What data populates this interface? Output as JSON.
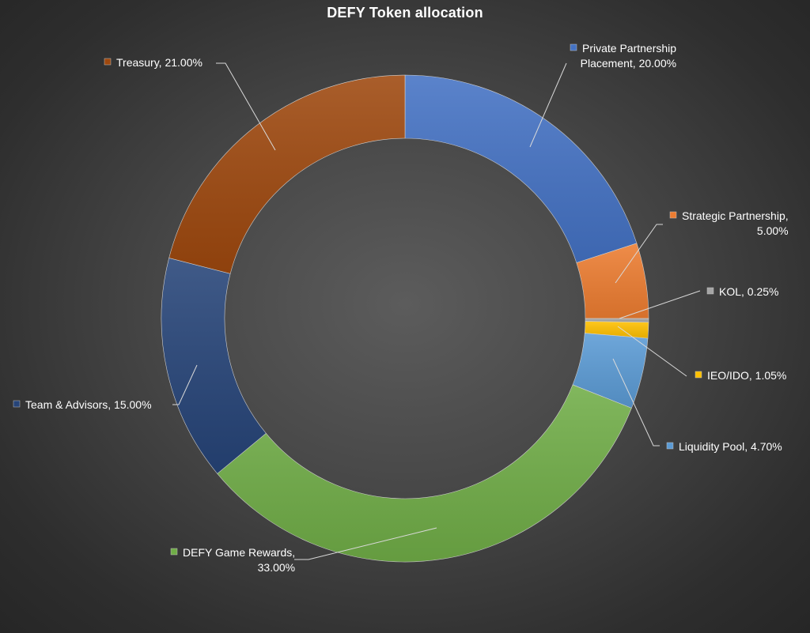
{
  "chart_data": {
    "type": "pie",
    "title": "DEFY Token allocation",
    "legend": "none",
    "slices": [
      {
        "name": "Private Partnership Placement",
        "value": 20.0,
        "label_lines": [
          "Private Partnership",
          "Placement, 20.00%"
        ],
        "color": "#4472C4"
      },
      {
        "name": "Strategic Partnership",
        "value": 5.0,
        "label_lines": [
          "Strategic Partnership,",
          "5.00%"
        ],
        "color": "#ED7D31"
      },
      {
        "name": "KOL",
        "value": 0.25,
        "label_lines": [
          "KOL, 0.25%"
        ],
        "color": "#A5A5A5"
      },
      {
        "name": "IEO/IDO",
        "value": 1.05,
        "label_lines": [
          "IEO/IDO, 1.05%"
        ],
        "color": "#FFC000"
      },
      {
        "name": "Liquidity Pool",
        "value": 4.7,
        "label_lines": [
          "Liquidity Pool, 4.70%"
        ],
        "color": "#5B9BD5"
      },
      {
        "name": "DEFY Game Rewards",
        "value": 33.0,
        "label_lines": [
          "DEFY Game Rewards,",
          "33.00%"
        ],
        "color": "#70AD47"
      },
      {
        "name": "Team & Advisors",
        "value": 15.0,
        "label_lines": [
          "Team & Advisors, 15.00%"
        ],
        "color": "#264478"
      },
      {
        "name": "Treasury",
        "value": 21.0,
        "label_lines": [
          "Treasury, 21.00%"
        ],
        "color": "#9E480E"
      }
    ]
  }
}
